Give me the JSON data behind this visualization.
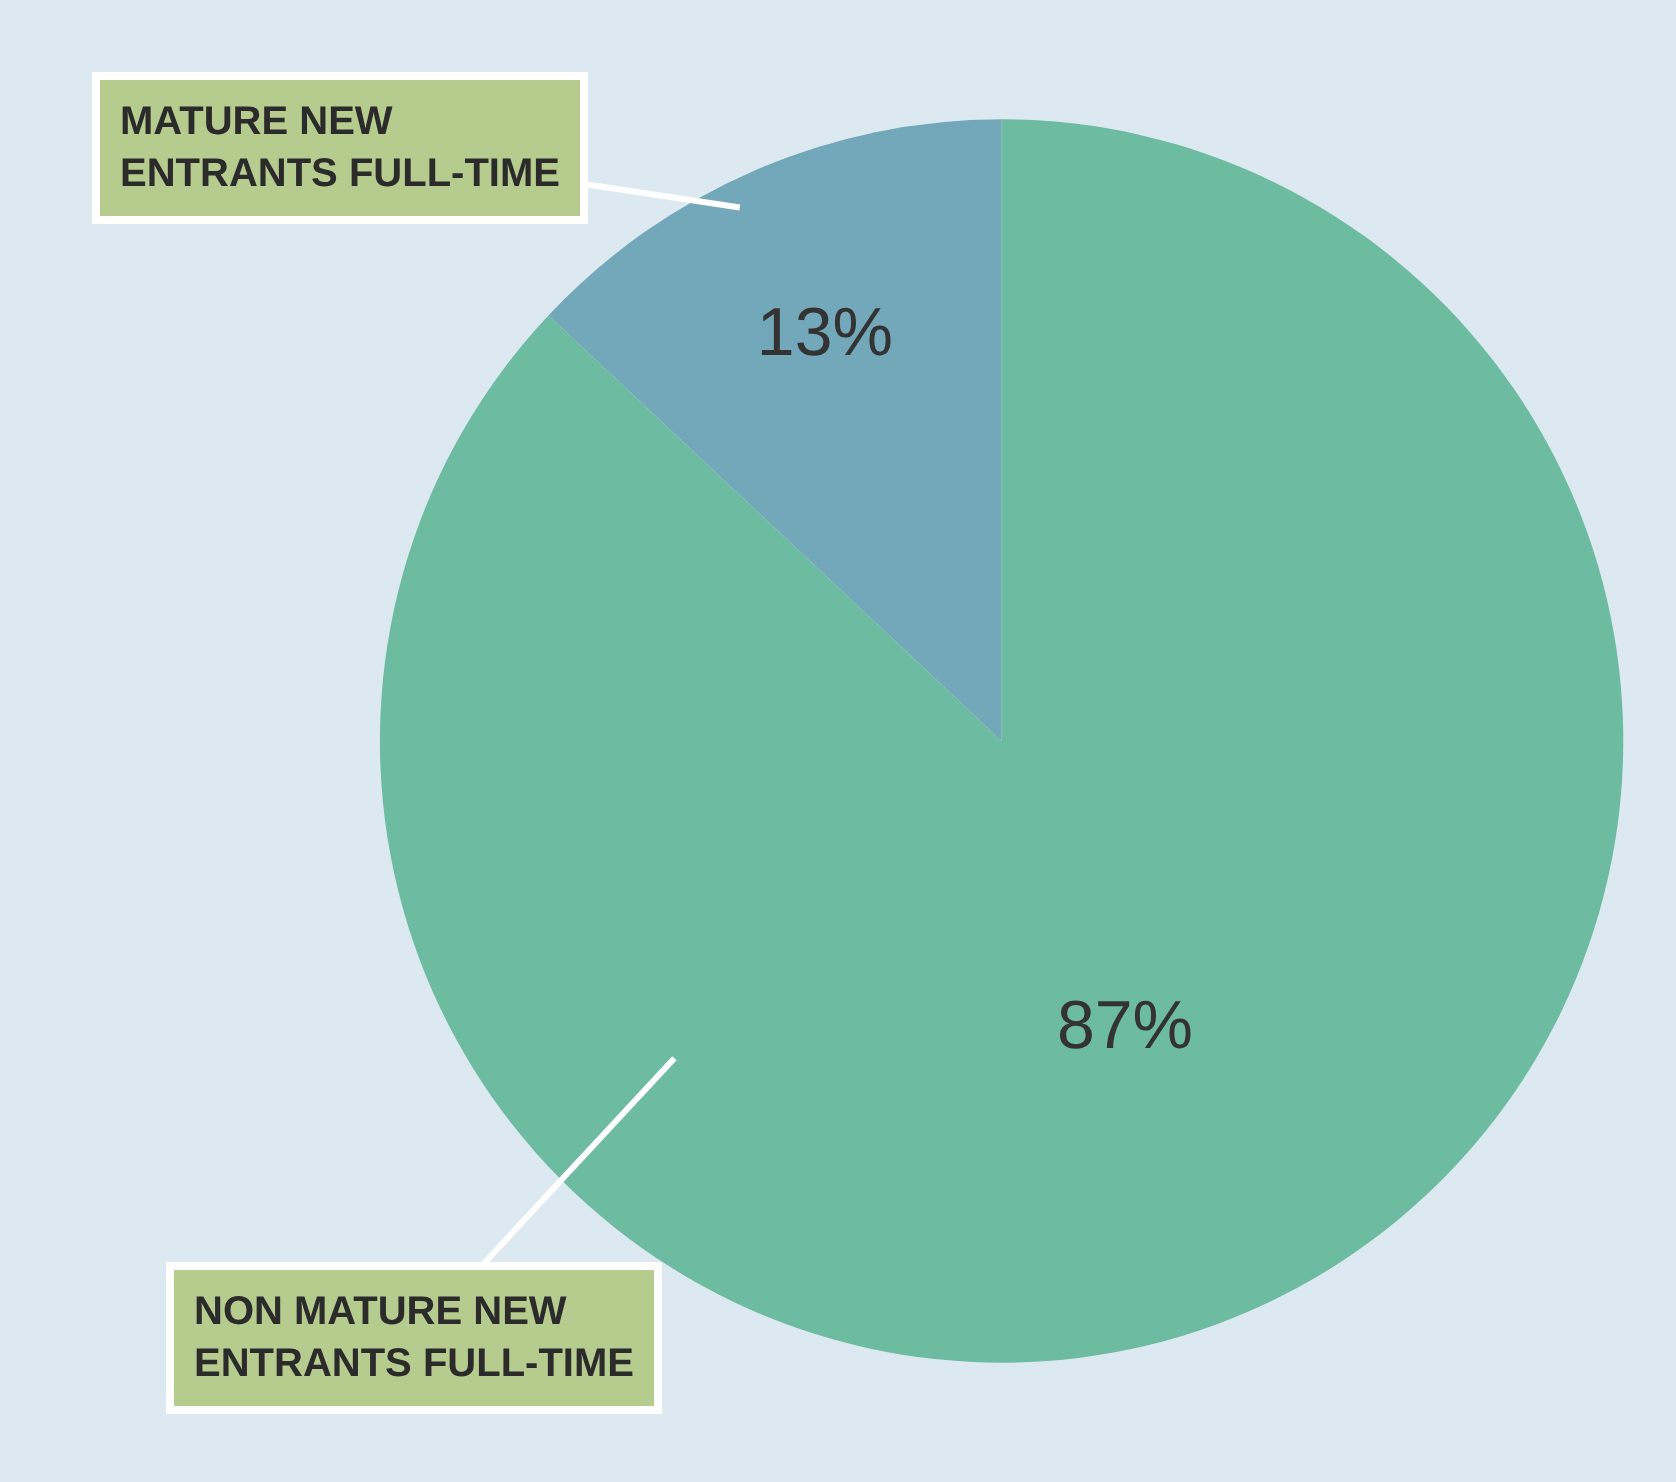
{
  "chart_data": {
    "type": "pie",
    "categories": [
      "MATURE NEW ENTRANTS FULL-TIME",
      "NON MATURE NEW ENTRANTS FULL-TIME"
    ],
    "values": [
      13,
      87
    ],
    "colors": [
      "#72a8ba",
      "#6dbba0"
    ],
    "value_labels": [
      "13%",
      "87%"
    ],
    "legend": false
  }
}
